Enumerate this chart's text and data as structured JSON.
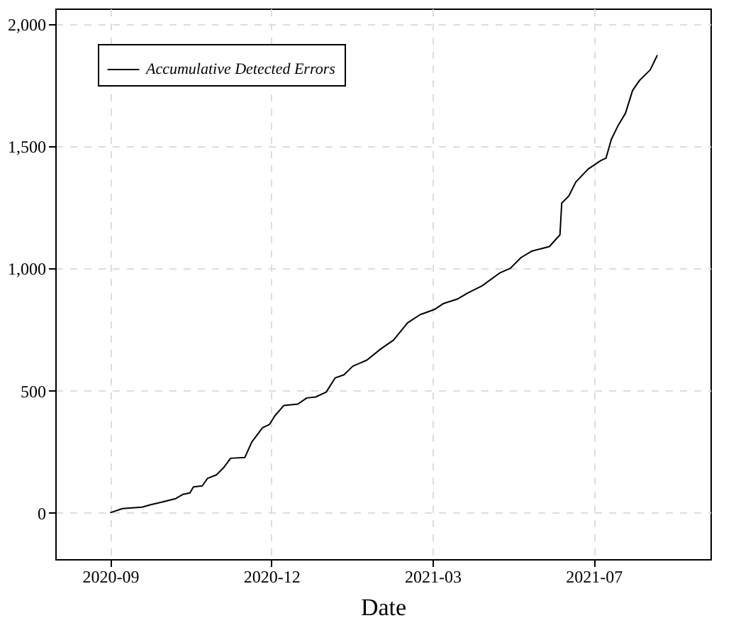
{
  "chart_data": {
    "type": "line",
    "xlabel": "Date",
    "x": [
      "2020-09-01",
      "2020-09-08",
      "2020-09-19",
      "2020-09-24",
      "2020-09-30",
      "2020-10-08",
      "2020-10-12",
      "2020-10-16",
      "2020-10-18",
      "2020-10-23",
      "2020-10-26",
      "2020-10-31",
      "2020-11-04",
      "2020-11-08",
      "2020-11-16",
      "2020-11-20",
      "2020-11-26",
      "2020-11-30",
      "2020-12-03",
      "2020-12-08",
      "2020-12-16",
      "2020-12-21",
      "2020-12-26",
      "2021-01-01",
      "2021-01-06",
      "2021-01-11",
      "2021-01-16",
      "2021-01-24",
      "2021-02-01",
      "2021-02-08",
      "2021-02-16",
      "2021-02-23",
      "2021-03-03",
      "2021-03-08",
      "2021-03-16",
      "2021-03-22",
      "2021-03-30",
      "2021-04-09",
      "2021-04-15",
      "2021-04-21",
      "2021-04-27",
      "2021-05-07",
      "2021-05-13",
      "2021-05-14",
      "2021-05-18",
      "2021-05-22",
      "2021-05-29",
      "2021-06-05",
      "2021-06-08",
      "2021-06-11",
      "2021-06-15",
      "2021-06-19",
      "2021-06-23",
      "2021-06-27",
      "2021-07-03",
      "2021-07-07"
    ],
    "series": [
      {
        "name": "Accumulative Detected Errors",
        "color": "#000000",
        "values": [
          0,
          17,
          23,
          33,
          43,
          58,
          75,
          81,
          106,
          110,
          141,
          155,
          184,
          223,
          226,
          290,
          348,
          362,
          397,
          439,
          445,
          470,
          474,
          494,
          552,
          565,
          600,
          625,
          672,
          707,
          778,
          811,
          832,
          856,
          875,
          900,
          929,
          982,
          1001,
          1045,
          1071,
          1090,
          1138,
          1268,
          1297,
          1355,
          1408,
          1442,
          1452,
          1529,
          1588,
          1636,
          1729,
          1771,
          1814,
          1874
        ]
      }
    ],
    "xlim": [
      "2020-08-01",
      "2021-08-06"
    ],
    "xticks": [
      {
        "value": "2020-09-01",
        "label": "2020-09"
      },
      {
        "value": "2020-12-01",
        "label": "2020-12"
      },
      {
        "value": "2021-03-02",
        "label": "2021-03"
      },
      {
        "value": "2021-06-01",
        "label": "2021-07"
      }
    ],
    "ylim": [
      -190,
      2065
    ],
    "yticks": [
      0,
      500,
      {
        "value": 1000,
        "label": "1,000"
      },
      {
        "value": 1500,
        "label": "1,500"
      },
      {
        "value": 2000,
        "label": "2,000"
      }
    ],
    "grid": true,
    "legend": "top left",
    "line_style": "solid",
    "marker": "none"
  }
}
